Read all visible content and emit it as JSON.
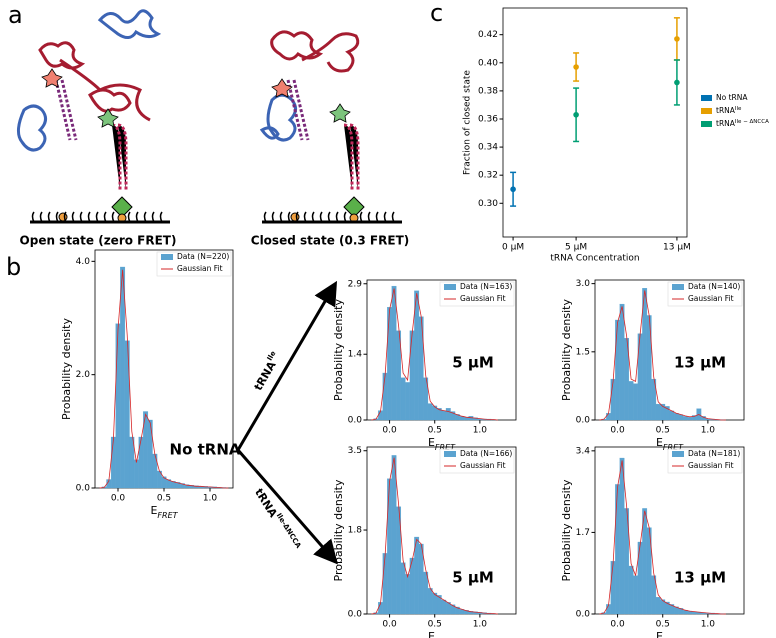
{
  "panel_labels": [
    "a",
    "b",
    "c"
  ],
  "panel_a": {
    "states": [
      {
        "label": "Open state (zero FRET)"
      },
      {
        "label": "Closed state (0.3 FRET)"
      }
    ]
  },
  "arrows": [
    {
      "text": "tRNA",
      "sup": "Ile"
    },
    {
      "text": "tRNA",
      "sup": "Ile-ΔNCCA"
    }
  ],
  "chart_data": [
    {
      "type": "errorbar",
      "xlabel": "tRNA Concentration",
      "ylabel": "Fraction of closed state",
      "xlim": [
        -0.8,
        13.8
      ],
      "ylim": [
        0.276,
        0.439
      ],
      "xticks": [
        {
          "value": 0,
          "label": "0 μM"
        },
        {
          "value": 5,
          "label": "5 μM"
        },
        {
          "value": 13,
          "label": "13 μM"
        }
      ],
      "yticks": [
        {
          "value": 0.3,
          "label": "0.30"
        },
        0.32,
        0.34,
        0.36,
        0.38,
        {
          "value": 0.4,
          "label": "0.40"
        },
        0.42
      ],
      "legend": "outside right",
      "series": [
        {
          "name": "No tRNA",
          "color": "#0072b2",
          "x": [
            0
          ],
          "values": [
            0.31
          ],
          "errors": [
            0.012
          ]
        },
        {
          "name": "tRNA",
          "name_sup": "Ile",
          "color": "#e69f00",
          "x": [
            5,
            13
          ],
          "values": [
            0.397,
            0.417
          ],
          "errors": [
            0.01,
            0.015
          ]
        },
        {
          "name": "tRNA",
          "name_sup": "Ile − ΔNCCA",
          "color": "#009e73",
          "x": [
            5,
            13
          ],
          "values": [
            0.363,
            0.386
          ],
          "errors": [
            0.019,
            0.016
          ]
        }
      ]
    },
    {
      "type": "histogram",
      "annotation": "No tRNA",
      "ylabel": "Probability density",
      "xlabel": "E",
      "xlabel_sub": "FRET",
      "name": "Data (N=220)",
      "color": "#5ba3d0",
      "legend": "upper right",
      "xlim": [
        -0.25,
        1.25
      ],
      "ylim": [
        0,
        4.2
      ],
      "xticks": [
        {
          "value": 0,
          "label": "0.0"
        },
        0.5,
        {
          "value": 1,
          "label": "1.0"
        }
      ],
      "yticks": [
        {
          "value": 0,
          "label": "0.0"
        },
        {
          "value": 2,
          "label": "2.0"
        },
        {
          "value": 4,
          "label": "4.0"
        }
      ],
      "bins": [
        -0.225,
        -0.175,
        -0.125,
        -0.075,
        -0.025,
        0.025,
        0.075,
        0.125,
        0.175,
        0.225,
        0.275,
        0.325,
        0.375,
        0.425,
        0.475,
        0.525,
        0.575,
        0.625,
        0.675,
        0.725,
        0.775,
        0.825,
        0.875,
        0.925,
        0.975,
        1.025,
        1.075,
        1.125,
        1.175,
        1.225
      ],
      "values": [
        0,
        0.02,
        0.15,
        0.9,
        2.9,
        3.9,
        2.6,
        0.9,
        0.5,
        0.9,
        1.35,
        1.2,
        0.6,
        0.3,
        0.2,
        0.15,
        0.12,
        0.1,
        0.08,
        0.06,
        0.05,
        0.04,
        0.03,
        0.03,
        0.02,
        0.02,
        0.01,
        0.01,
        0
      ],
      "fit": {
        "name": "Gaussian Fit",
        "color": "#d62728",
        "x": [
          -0.2,
          -0.15,
          -0.1,
          -0.05,
          0,
          0.05,
          0.1,
          0.15,
          0.2,
          0.25,
          0.3,
          0.35,
          0.4,
          0.45,
          0.5,
          0.55,
          0.6,
          0.65,
          0.7,
          0.75,
          0.8,
          0.85,
          0.9,
          0.95,
          1.0,
          1.05,
          1.1,
          1.15,
          1.2
        ],
        "values": [
          0,
          0.01,
          0.12,
          0.85,
          2.8,
          3.85,
          2.7,
          1.0,
          0.45,
          0.85,
          1.3,
          1.15,
          0.6,
          0.3,
          0.18,
          0.14,
          0.11,
          0.09,
          0.07,
          0.05,
          0.04,
          0.03,
          0.03,
          0.02,
          0.02,
          0.01,
          0.01,
          0,
          0
        ]
      }
    },
    {
      "type": "histogram",
      "annotation": "5 μM",
      "ylabel": "Probability density",
      "xlabel": "E",
      "xlabel_sub": "FRET",
      "name": "Data (N=163)",
      "color": "#5ba3d0",
      "legend": "upper right",
      "xlim": [
        -0.25,
        1.4
      ],
      "ylim": [
        0,
        2.98
      ],
      "xticks": [
        {
          "value": 0,
          "label": "0.0"
        },
        0.5,
        {
          "value": 1,
          "label": "1.0"
        }
      ],
      "yticks": [
        {
          "value": 0,
          "label": "0.0"
        },
        1.4,
        2.9
      ],
      "bins": [
        -0.225,
        -0.175,
        -0.125,
        -0.075,
        -0.025,
        0.025,
        0.075,
        0.125,
        0.175,
        0.225,
        0.275,
        0.325,
        0.375,
        0.425,
        0.475,
        0.525,
        0.575,
        0.625,
        0.675,
        0.725,
        0.775,
        0.825,
        0.875,
        0.925,
        0.975,
        1.025,
        1.075,
        1.125,
        1.175,
        1.225
      ],
      "values": [
        0,
        0.03,
        0.2,
        1.0,
        2.4,
        2.85,
        1.9,
        0.9,
        0.8,
        1.9,
        2.75,
        2.2,
        0.9,
        0.35,
        0.3,
        0.25,
        0.2,
        0.25,
        0.18,
        0.12,
        0.08,
        0.06,
        0.08,
        0.05,
        0.03,
        0.02,
        0.02,
        0.01,
        0
      ],
      "fit": {
        "name": "Gaussian Fit",
        "color": "#d62728",
        "x": [
          -0.2,
          -0.15,
          -0.1,
          -0.05,
          0,
          0.05,
          0.1,
          0.15,
          0.2,
          0.25,
          0.3,
          0.35,
          0.4,
          0.45,
          0.5,
          0.55,
          0.6,
          0.65,
          0.7,
          0.75,
          0.8,
          0.85,
          0.9,
          0.95,
          1.0,
          1.05,
          1.1,
          1.15,
          1.2
        ],
        "values": [
          0,
          0.02,
          0.18,
          0.95,
          2.35,
          2.8,
          2.0,
          1.0,
          0.85,
          1.85,
          2.7,
          2.2,
          0.95,
          0.4,
          0.28,
          0.22,
          0.2,
          0.18,
          0.15,
          0.11,
          0.08,
          0.06,
          0.05,
          0.04,
          0.03,
          0.02,
          0.01,
          0.01,
          0
        ]
      }
    },
    {
      "type": "histogram",
      "annotation": "13 μM",
      "ylabel": "Probability density",
      "xlabel": "E",
      "xlabel_sub": "FRET",
      "name": "Data (N=140)",
      "color": "#5ba3d0",
      "legend": "upper right",
      "xlim": [
        -0.25,
        1.4
      ],
      "ylim": [
        0,
        3.08
      ],
      "xticks": [
        {
          "value": 0,
          "label": "0.0"
        },
        0.5,
        {
          "value": 1,
          "label": "1.0"
        }
      ],
      "yticks": [
        {
          "value": 0,
          "label": "0.0"
        },
        1.5,
        {
          "value": 3,
          "label": "3.0"
        }
      ],
      "bins": [
        -0.225,
        -0.175,
        -0.125,
        -0.075,
        -0.025,
        0.025,
        0.075,
        0.125,
        0.175,
        0.225,
        0.275,
        0.325,
        0.375,
        0.425,
        0.475,
        0.525,
        0.575,
        0.625,
        0.675,
        0.725,
        0.775,
        0.825,
        0.875,
        0.925,
        0.975,
        1.025,
        1.075,
        1.125,
        1.175,
        1.225
      ],
      "values": [
        0,
        0.02,
        0.15,
        0.9,
        2.2,
        2.55,
        1.8,
        0.85,
        0.8,
        1.9,
        2.9,
        2.3,
        0.9,
        0.35,
        0.35,
        0.3,
        0.2,
        0.15,
        0.12,
        0.08,
        0.06,
        0.1,
        0.25,
        0.08,
        0.03,
        0.02,
        0.01,
        0.01,
        0
      ],
      "fit": {
        "name": "Gaussian Fit",
        "color": "#d62728",
        "x": [
          -0.2,
          -0.15,
          -0.1,
          -0.05,
          0,
          0.05,
          0.1,
          0.15,
          0.2,
          0.25,
          0.3,
          0.35,
          0.4,
          0.45,
          0.5,
          0.55,
          0.6,
          0.65,
          0.7,
          0.75,
          0.8,
          0.85,
          0.9,
          0.95,
          1.0,
          1.05,
          1.1,
          1.15,
          1.2
        ],
        "values": [
          0,
          0.02,
          0.14,
          0.85,
          2.15,
          2.5,
          1.85,
          0.9,
          0.85,
          1.9,
          2.85,
          2.3,
          0.95,
          0.4,
          0.3,
          0.25,
          0.2,
          0.15,
          0.12,
          0.09,
          0.07,
          0.08,
          0.12,
          0.06,
          0.03,
          0.02,
          0.01,
          0,
          0
        ]
      }
    },
    {
      "type": "histogram",
      "annotation": "5 μM",
      "ylabel": "Probability density",
      "xlabel": "E",
      "xlabel_sub": "FRET",
      "name": "Data (N=166)",
      "color": "#5ba3d0",
      "legend": "upper right",
      "xlim": [
        -0.25,
        1.4
      ],
      "ylim": [
        0,
        3.58
      ],
      "xticks": [
        {
          "value": 0,
          "label": "0.0"
        },
        0.5,
        {
          "value": 1,
          "label": "1.0"
        }
      ],
      "yticks": [
        {
          "value": 0,
          "label": "0.0"
        },
        1.8,
        3.5
      ],
      "bins": [
        -0.225,
        -0.175,
        -0.125,
        -0.075,
        -0.025,
        0.025,
        0.075,
        0.125,
        0.175,
        0.225,
        0.275,
        0.325,
        0.375,
        0.425,
        0.475,
        0.525,
        0.575,
        0.625,
        0.675,
        0.725,
        0.775,
        0.825,
        0.875,
        0.925,
        0.975,
        1.025,
        1.075,
        1.125,
        1.175,
        1.225
      ],
      "values": [
        0,
        0.03,
        0.25,
        1.3,
        2.9,
        3.4,
        2.3,
        1.1,
        0.85,
        1.2,
        1.65,
        1.5,
        0.9,
        0.55,
        0.45,
        0.4,
        0.3,
        0.25,
        0.2,
        0.15,
        0.1,
        0.08,
        0.06,
        0.05,
        0.04,
        0.03,
        0.02,
        0.01,
        0
      ],
      "fit": {
        "name": "Gaussian Fit",
        "color": "#d62728",
        "x": [
          -0.2,
          -0.15,
          -0.1,
          -0.05,
          0,
          0.05,
          0.1,
          0.15,
          0.2,
          0.25,
          0.3,
          0.35,
          0.4,
          0.45,
          0.5,
          0.55,
          0.6,
          0.65,
          0.7,
          0.75,
          0.8,
          0.85,
          0.9,
          0.95,
          1.0,
          1.05,
          1.1,
          1.15,
          1.2
        ],
        "values": [
          0,
          0.02,
          0.22,
          1.25,
          2.85,
          3.35,
          2.35,
          1.15,
          0.8,
          1.15,
          1.6,
          1.5,
          0.95,
          0.55,
          0.42,
          0.36,
          0.3,
          0.24,
          0.18,
          0.13,
          0.1,
          0.07,
          0.05,
          0.04,
          0.03,
          0.02,
          0.01,
          0.01,
          0
        ]
      }
    },
    {
      "type": "histogram",
      "annotation": "13 μM",
      "ylabel": "Probability density",
      "xlabel": "E",
      "xlabel_sub": "FRET",
      "name": "Data (N=181)",
      "color": "#5ba3d0",
      "legend": "upper right",
      "xlim": [
        -0.25,
        1.4
      ],
      "ylim": [
        0,
        3.48
      ],
      "xticks": [
        {
          "value": 0,
          "label": "0.0"
        },
        0.5,
        {
          "value": 1,
          "label": "1.0"
        }
      ],
      "yticks": [
        {
          "value": 0,
          "label": "0.0"
        },
        1.7,
        3.4
      ],
      "bins": [
        -0.225,
        -0.175,
        -0.125,
        -0.075,
        -0.025,
        0.025,
        0.075,
        0.125,
        0.175,
        0.225,
        0.275,
        0.325,
        0.375,
        0.425,
        0.475,
        0.525,
        0.575,
        0.625,
        0.675,
        0.725,
        0.775,
        0.825,
        0.875,
        0.925,
        0.975,
        1.025,
        1.075,
        1.125,
        1.175,
        1.225
      ],
      "values": [
        0,
        0.03,
        0.2,
        1.1,
        2.7,
        3.25,
        2.2,
        1.0,
        0.8,
        1.5,
        2.2,
        1.8,
        0.8,
        0.35,
        0.3,
        0.25,
        0.2,
        0.15,
        0.12,
        0.08,
        0.06,
        0.05,
        0.04,
        0.03,
        0.02,
        0.02,
        0.01,
        0.01,
        0
      ],
      "fit": {
        "name": "Gaussian Fit",
        "color": "#d62728",
        "x": [
          -0.2,
          -0.15,
          -0.1,
          -0.05,
          0,
          0.05,
          0.1,
          0.15,
          0.2,
          0.25,
          0.3,
          0.35,
          0.4,
          0.45,
          0.5,
          0.55,
          0.6,
          0.65,
          0.7,
          0.75,
          0.8,
          0.85,
          0.9,
          0.95,
          1.0,
          1.05,
          1.1,
          1.15,
          1.2
        ],
        "values": [
          0,
          0.02,
          0.18,
          1.05,
          2.65,
          3.2,
          2.25,
          1.05,
          0.8,
          1.45,
          2.15,
          1.8,
          0.85,
          0.4,
          0.28,
          0.22,
          0.18,
          0.14,
          0.11,
          0.08,
          0.06,
          0.05,
          0.04,
          0.03,
          0.02,
          0.01,
          0.01,
          0,
          0
        ]
      }
    }
  ]
}
